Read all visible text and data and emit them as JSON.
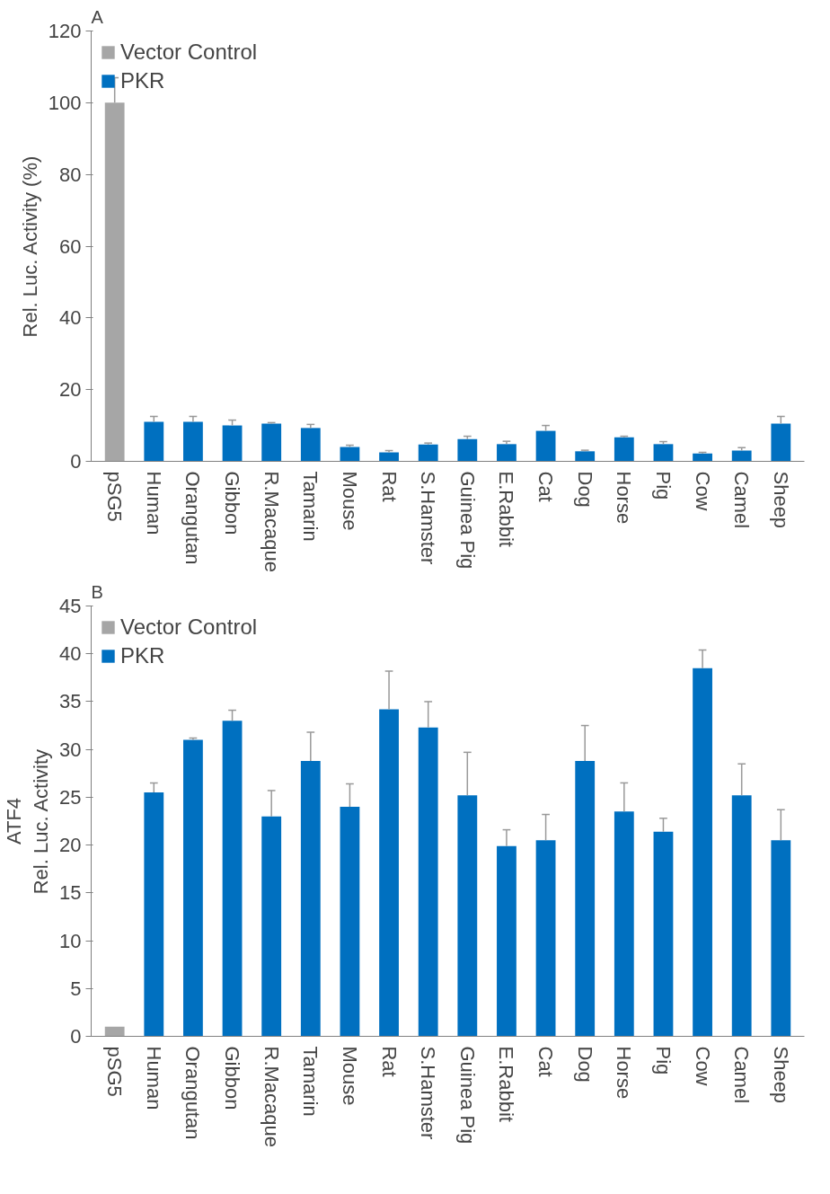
{
  "chart_data": [
    {
      "type": "bar",
      "title": "A",
      "ylabel": "Rel. Luc. Activity (%)",
      "categories": [
        "pSG5",
        "Human",
        "Orangutan",
        "Gibbon",
        "R.Macaque",
        "Tamarin",
        "Mouse",
        "Rat",
        "S.Hamster",
        "Guinea Pig",
        "E.Rabbit",
        "Cat",
        "Dog",
        "Horse",
        "Pig",
        "Cow",
        "Camel",
        "Sheep"
      ],
      "series": [
        {
          "name": "Vector Control",
          "color": "#a6a6a6",
          "values": [
            100,
            null,
            null,
            null,
            null,
            null,
            null,
            null,
            null,
            null,
            null,
            null,
            null,
            null,
            null,
            null,
            null,
            null
          ],
          "errors": [
            [
              100,
              107
            ],
            null,
            null,
            null,
            null,
            null,
            null,
            null,
            null,
            null,
            null,
            null,
            null,
            null,
            null,
            null,
            null,
            null
          ]
        },
        {
          "name": "PKR",
          "color": "#0070c0",
          "values": [
            null,
            11,
            11,
            10,
            10.5,
            9.3,
            4,
            2.5,
            4.7,
            6.2,
            4.8,
            8.5,
            2.8,
            6.7,
            4.8,
            2.2,
            3,
            10.5
          ],
          "errors": [
            null,
            [
              11,
              12.5
            ],
            [
              11,
              12.5
            ],
            [
              10,
              11.5
            ],
            [
              10.5,
              10.8
            ],
            [
              9.3,
              10.3
            ],
            [
              4,
              4.5
            ],
            [
              2.5,
              3
            ],
            [
              4.7,
              5.1
            ],
            [
              6.2,
              7
            ],
            [
              4.8,
              5.6
            ],
            [
              8.5,
              10
            ],
            [
              2.8,
              3.1
            ],
            [
              6.7,
              7
            ],
            [
              4.8,
              5.5
            ],
            [
              2.2,
              2.5
            ],
            [
              3,
              3.8
            ],
            [
              10.5,
              12.5
            ]
          ]
        }
      ],
      "ylim": [
        0,
        120
      ],
      "yticks": [
        0,
        20,
        40,
        60,
        80,
        100,
        120
      ],
      "grid": false,
      "legend": "top left"
    },
    {
      "type": "bar",
      "title": "B",
      "ylabel": "ATF4\nRel. Luc. Activity",
      "categories": [
        "pSG5",
        "Human",
        "Orangutan",
        "Gibbon",
        "R.Macaque",
        "Tamarin",
        "Mouse",
        "Rat",
        "S.Hamster",
        "Guinea Pig",
        "E.Rabbit",
        "Cat",
        "Dog",
        "Horse",
        "Pig",
        "Cow",
        "Camel",
        "Sheep"
      ],
      "series": [
        {
          "name": "Vector Control",
          "color": "#a6a6a6",
          "values": [
            1,
            null,
            null,
            null,
            null,
            null,
            null,
            null,
            null,
            null,
            null,
            null,
            null,
            null,
            null,
            null,
            null,
            null
          ]
        },
        {
          "name": "PKR",
          "color": "#0070c0",
          "values": [
            null,
            25.5,
            31,
            33,
            23,
            28.8,
            24,
            34.2,
            32.3,
            25.2,
            19.9,
            20.5,
            28.8,
            23.5,
            21.4,
            38.5,
            25.2,
            20.5
          ],
          "errors": [
            null,
            [
              25.5,
              26.5
            ],
            [
              31,
              31.2
            ],
            [
              33,
              34.1
            ],
            [
              23,
              25.7
            ],
            [
              28.8,
              31.8
            ],
            [
              24,
              26.4
            ],
            [
              34.2,
              38.2
            ],
            [
              32.3,
              35
            ],
            [
              25.2,
              29.7
            ],
            [
              19.9,
              21.6
            ],
            [
              20.5,
              23.2
            ],
            [
              28.8,
              32.5
            ],
            [
              23.5,
              26.5
            ],
            [
              21.4,
              22.8
            ],
            [
              38.5,
              40.4
            ],
            [
              25.2,
              28.5
            ],
            [
              20.5,
              23.7
            ]
          ]
        }
      ],
      "ylim": [
        0,
        45
      ],
      "yticks": [
        0,
        5,
        10,
        15,
        20,
        25,
        30,
        35,
        40,
        45
      ],
      "grid": false,
      "legend": "top left"
    }
  ]
}
